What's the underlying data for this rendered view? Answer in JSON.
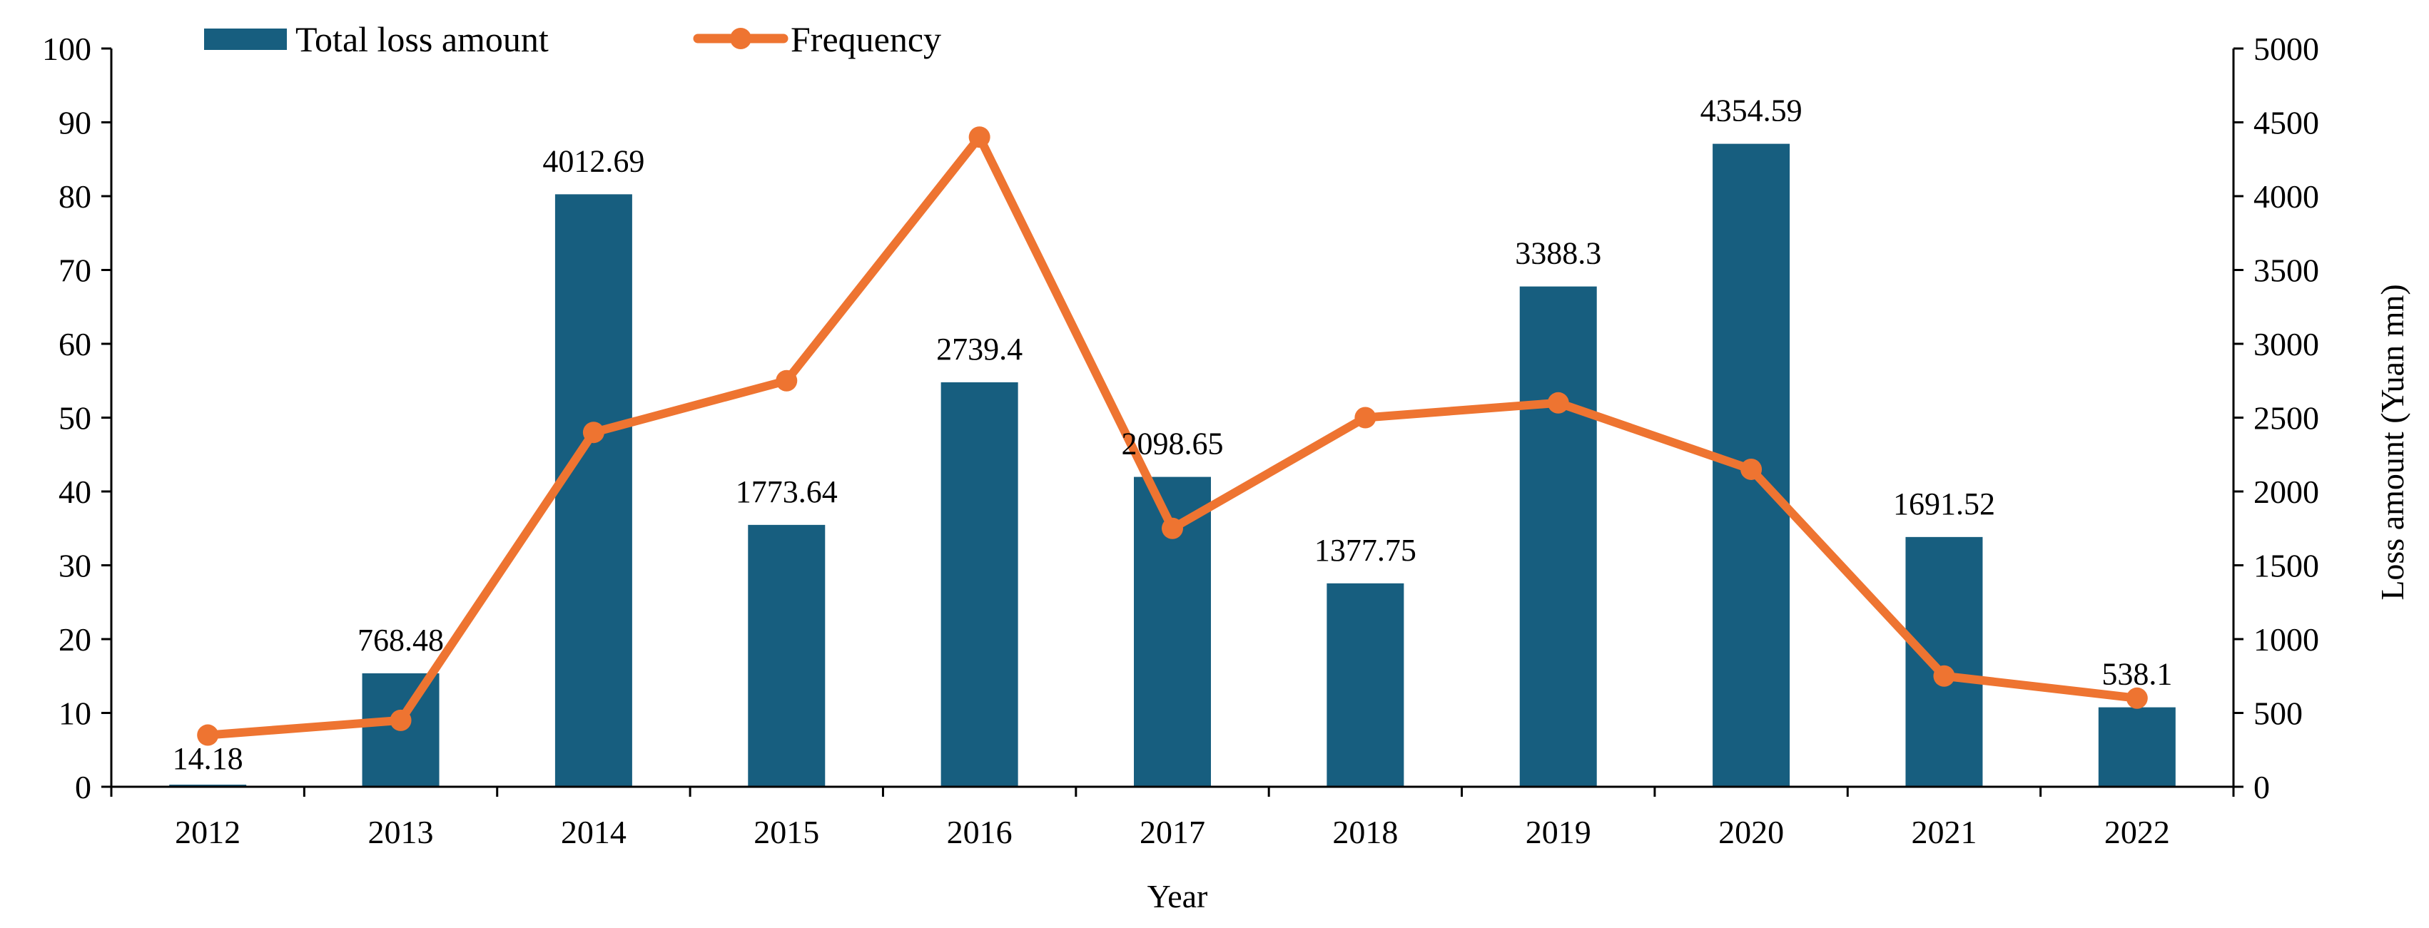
{
  "chart_data": {
    "type": "bar+line",
    "title": "",
    "xlabel": "Year",
    "ylabel_left": "",
    "ylabel_right": "Loss amount (Yuan mn)",
    "categories": [
      "2012",
      "2013",
      "2014",
      "2015",
      "2016",
      "2017",
      "2018",
      "2019",
      "2020",
      "2021",
      "2022"
    ],
    "series": [
      {
        "name": "Total loss amount",
        "type": "bar",
        "axis": "right",
        "values": [
          14.18,
          768.48,
          4012.69,
          1773.64,
          2739.4,
          2098.65,
          1377.75,
          3388.3,
          4354.59,
          1691.52,
          538.1
        ],
        "labels": [
          "14.18",
          "768.48",
          "4012.69",
          "1773.64",
          "2739.4",
          "2098.65",
          "1377.75",
          "3388.3",
          "4354.59",
          "1691.52",
          "538.1"
        ]
      },
      {
        "name": "Frequency",
        "type": "line",
        "axis": "left",
        "values": [
          7,
          9,
          48,
          55,
          88,
          35,
          50,
          52,
          43,
          15,
          12
        ]
      }
    ],
    "ylim_left": [
      0,
      100
    ],
    "yticks_left": [
      "0",
      "10",
      "20",
      "30",
      "40",
      "50",
      "60",
      "70",
      "80",
      "90",
      "100"
    ],
    "ylim_right": [
      0,
      5000
    ],
    "yticks_right": [
      "0",
      "500",
      "1000",
      "1500",
      "2000",
      "2500",
      "3000",
      "3500",
      "4000",
      "4500",
      "5000"
    ],
    "grid": false,
    "legend": "top-left",
    "colors": {
      "bar": "#175e7f",
      "line": "#ee7431",
      "axis": "#000000"
    }
  }
}
